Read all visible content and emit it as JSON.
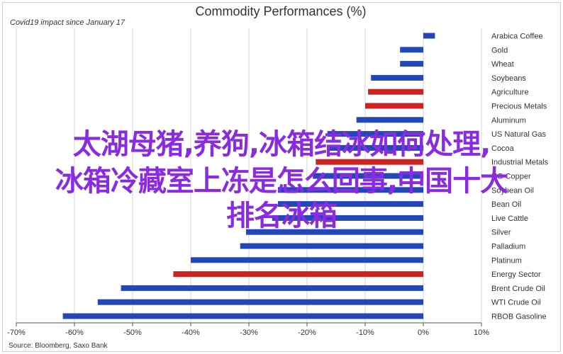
{
  "chart_data": {
    "type": "bar",
    "orientation": "horizontal",
    "title": "Commodity Performances (%)",
    "subtitle": "Covid19 impact since January 17",
    "source": "Source: Bloomberg, Saxo Bank",
    "xlim": [
      -70,
      10
    ],
    "xticks": [
      "-70%",
      "-60%",
      "-50%",
      "-40%",
      "-30%",
      "-20%",
      "-10%",
      "0%",
      "10%"
    ],
    "grid": true,
    "colors": {
      "energy_metals": "#2346b8",
      "agri_precious": "#cc2222",
      "axis": "#555555",
      "grid": "#d6d6d6"
    },
    "categories": [
      "Arabica Coffee",
      "Gold",
      "Wheat",
      "Soybeans",
      "Agriculture",
      "Precious Metals",
      "Aluminum",
      "US Natural Gas",
      "Cocoa",
      "Industrial Metals",
      "HG Copper",
      "Soybean Oil",
      "Bean Oil",
      "Live Cattle",
      "Silver",
      "Palladium",
      "Platinum",
      "Energy Sector",
      "Brent Crude Oil",
      "WTI Crude Oil",
      "RBOB Gasoline"
    ],
    "values": [
      2,
      -4,
      -4,
      -9,
      -9.5,
      -10,
      -11.5,
      -16.5,
      -16.5,
      -18.5,
      -19,
      -25,
      -25,
      -26,
      -30.5,
      -31.5,
      -40,
      -43,
      -52,
      -56,
      -62
    ],
    "bar_colors": [
      "blue",
      "blue",
      "blue",
      "blue",
      "red",
      "red",
      "blue",
      "blue",
      "blue",
      "red",
      "blue",
      "blue",
      "blue",
      "blue",
      "blue",
      "blue",
      "blue",
      "red",
      "blue",
      "blue",
      "blue"
    ]
  },
  "overlay": {
    "lines": [
      "太湖母猪,养狗,冰箱结冰如何处理,",
      "冰箱冷藏室上冻是怎么回事,中国十大",
      "排名冰箱"
    ]
  }
}
